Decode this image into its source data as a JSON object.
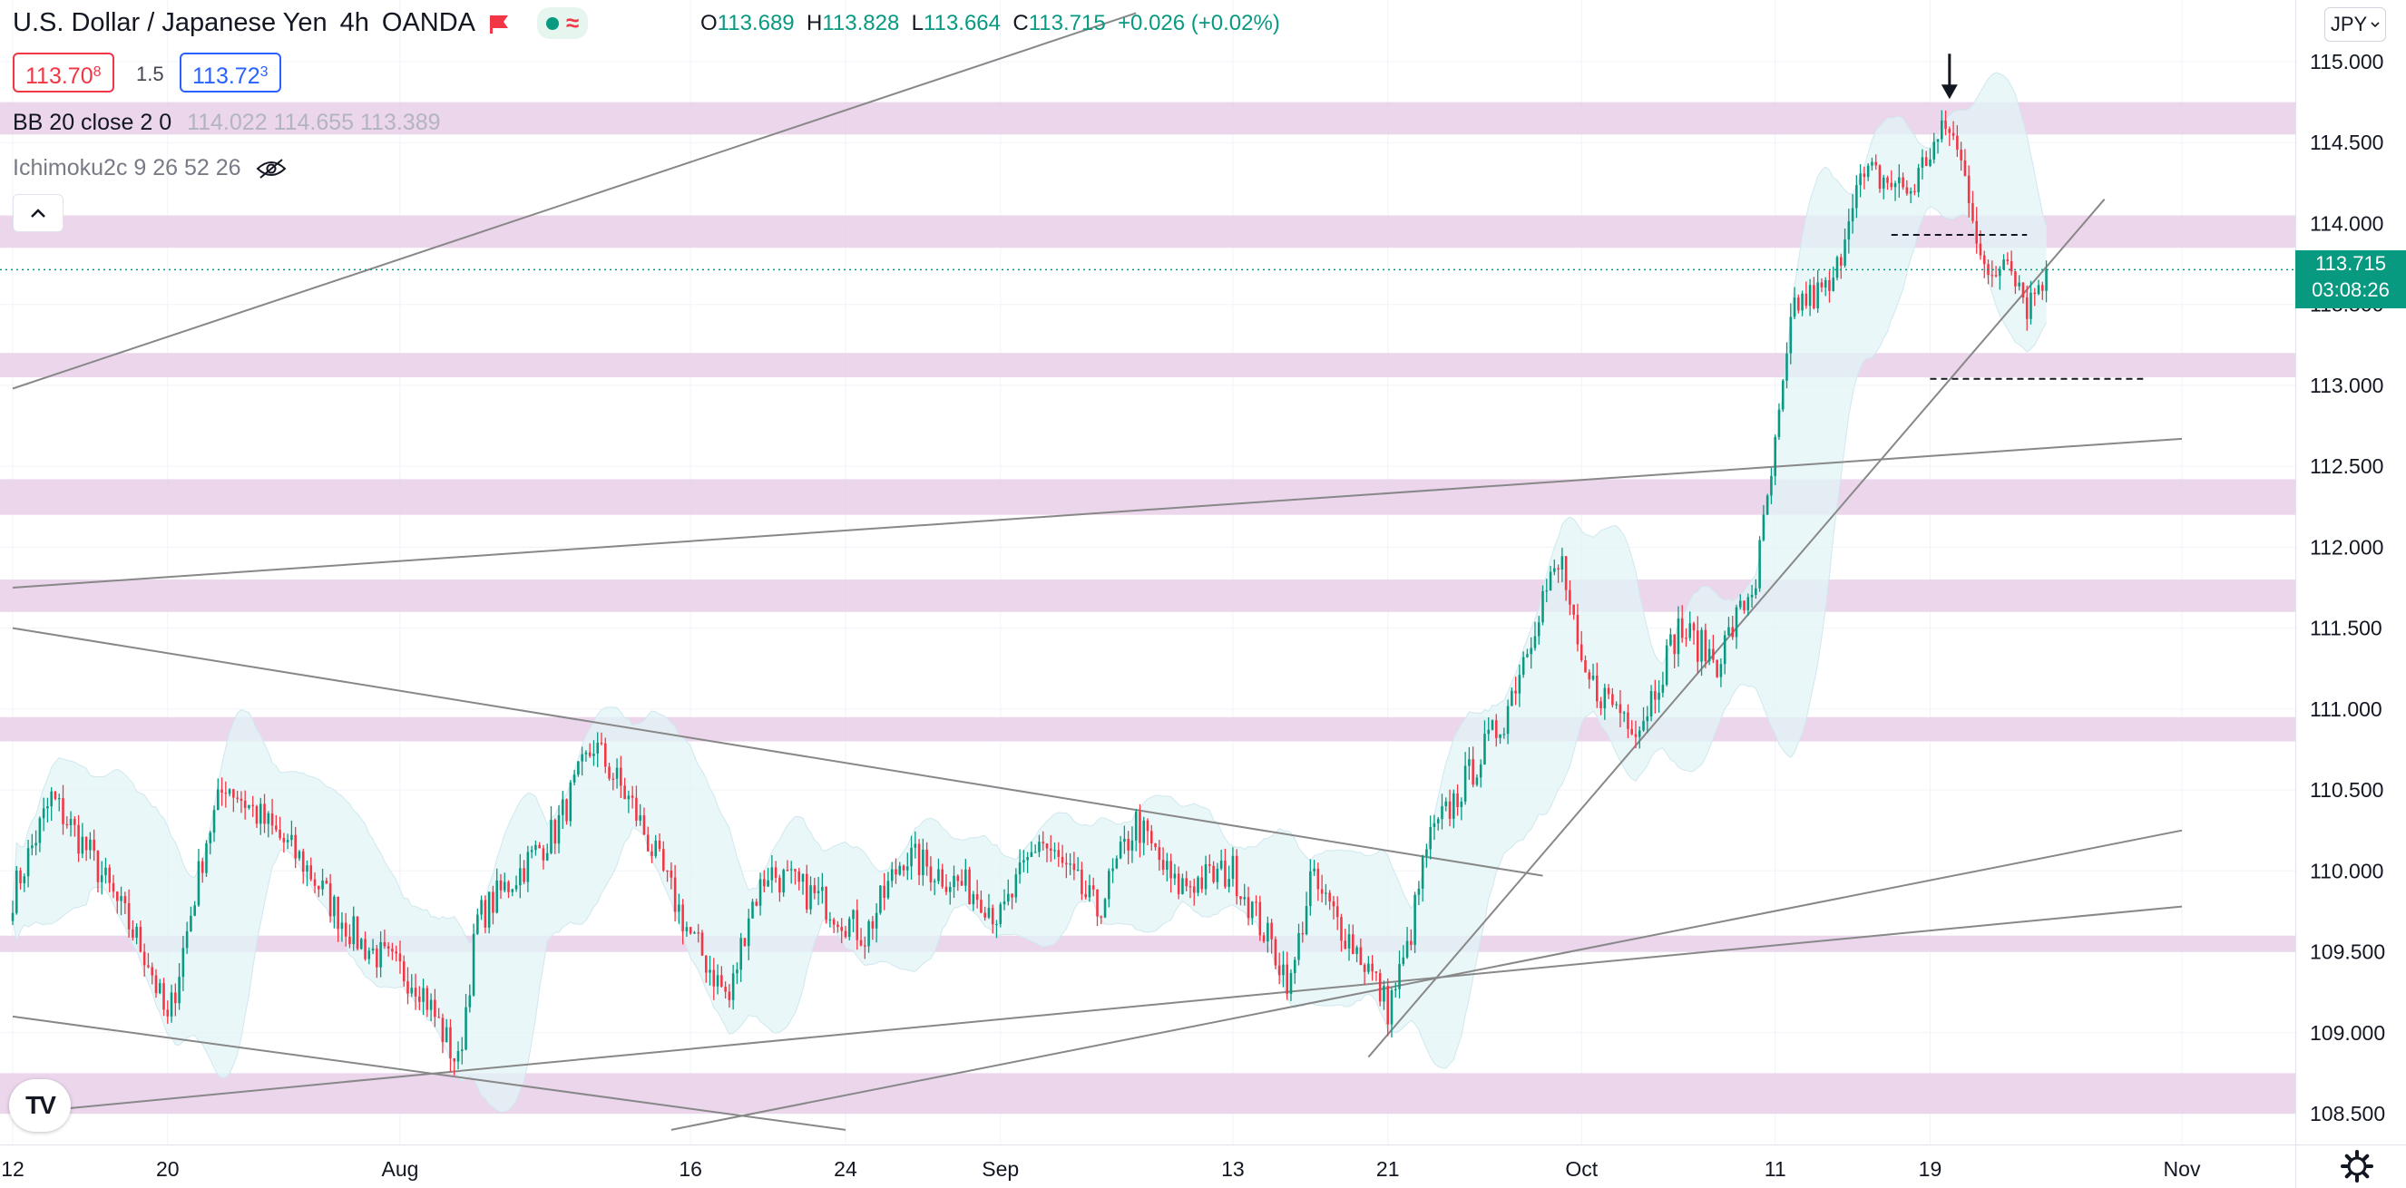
{
  "header": {
    "title": "U.S. Dollar / Japanese Yen",
    "interval": "4h",
    "broker": "OANDA",
    "flag_icon": "red-flag-icon",
    "status_icons": [
      "market-open-dot-icon",
      "data-wave-icon"
    ]
  },
  "ohlc": {
    "o_label": "O",
    "o": "113.689",
    "h_label": "H",
    "h": "113.828",
    "l_label": "L",
    "l": "113.664",
    "c_label": "C",
    "c": "113.715",
    "change": "+0.026 (+0.02%)"
  },
  "trade": {
    "sell_main": "113.70",
    "sell_sup": "8",
    "spread": "1.5",
    "buy_main": "113.72",
    "buy_sup": "3"
  },
  "indicators": {
    "bb_label": "BB 20 close 2 0",
    "bb_values": "114.022  114.655  113.389",
    "ichimoku_label": "Ichimoku2c 9 26 52 26"
  },
  "currency_button": "JPY",
  "current_price": {
    "value": "113.715",
    "countdown": "03:08:26"
  },
  "colors": {
    "up": "#089981",
    "down": "#f23645",
    "zone": "#e8cfe9",
    "band_fill": "#e3f4f7",
    "trendline": "#888888",
    "grid": "#f0f3fa"
  },
  "chart_data": {
    "type": "candlestick",
    "symbol": "USDJPY",
    "timeframe": "4h",
    "ylim": [
      108.4,
      115.25
    ],
    "y_ticks": [
      "115.000",
      "114.500",
      "114.000",
      "113.500",
      "113.000",
      "112.500",
      "112.000",
      "111.500",
      "111.000",
      "110.500",
      "110.000",
      "109.500",
      "109.000",
      "108.500"
    ],
    "x_ticks": [
      "12",
      "20",
      "Aug",
      "16",
      "24",
      "Sep",
      "13",
      "21",
      "Oct",
      "11",
      "19",
      "Nov"
    ],
    "date_range": [
      "2021-07-12",
      "2021-11-01"
    ],
    "anchors": [
      {
        "date": "2021-07-12",
        "price": 109.85
      },
      {
        "date": "2021-07-14",
        "price": 110.45
      },
      {
        "date": "2021-07-16",
        "price": 110.1
      },
      {
        "date": "2021-07-19",
        "price": 109.45
      },
      {
        "date": "2021-07-20",
        "price": 109.05
      },
      {
        "date": "2021-07-22",
        "price": 110.2
      },
      {
        "date": "2021-07-23",
        "price": 110.55
      },
      {
        "date": "2021-07-27",
        "price": 110.05
      },
      {
        "date": "2021-07-29",
        "price": 109.7
      },
      {
        "date": "2021-07-30",
        "price": 109.55
      },
      {
        "date": "2021-08-02",
        "price": 109.3
      },
      {
        "date": "2021-08-04",
        "price": 108.8
      },
      {
        "date": "2021-08-05",
        "price": 109.7
      },
      {
        "date": "2021-08-09",
        "price": 110.25
      },
      {
        "date": "2021-08-11",
        "price": 110.78
      },
      {
        "date": "2021-08-13",
        "price": 110.4
      },
      {
        "date": "2021-08-16",
        "price": 109.6
      },
      {
        "date": "2021-08-18",
        "price": 109.2
      },
      {
        "date": "2021-08-19",
        "price": 109.75
      },
      {
        "date": "2021-08-20",
        "price": 110.0
      },
      {
        "date": "2021-08-23",
        "price": 109.8
      },
      {
        "date": "2021-08-25",
        "price": 109.6
      },
      {
        "date": "2021-08-27",
        "price": 110.1
      },
      {
        "date": "2021-08-31",
        "price": 109.85
      },
      {
        "date": "2021-09-01",
        "price": 109.7
      },
      {
        "date": "2021-09-03",
        "price": 110.2
      },
      {
        "date": "2021-09-06",
        "price": 109.75
      },
      {
        "date": "2021-09-08",
        "price": 110.3
      },
      {
        "date": "2021-09-10",
        "price": 109.9
      },
      {
        "date": "2021-09-13",
        "price": 110.0
      },
      {
        "date": "2021-09-16",
        "price": 109.3
      },
      {
        "date": "2021-09-17",
        "price": 109.95
      },
      {
        "date": "2021-09-20",
        "price": 109.4
      },
      {
        "date": "2021-09-21",
        "price": 109.15
      },
      {
        "date": "2021-09-22",
        "price": 109.5
      },
      {
        "date": "2021-09-23",
        "price": 110.15
      },
      {
        "date": "2021-09-27",
        "price": 110.95
      },
      {
        "date": "2021-09-29",
        "price": 111.7
      },
      {
        "date": "2021-09-30",
        "price": 111.9
      },
      {
        "date": "2021-10-01",
        "price": 111.2
      },
      {
        "date": "2021-10-04",
        "price": 110.9
      },
      {
        "date": "2021-10-06",
        "price": 111.5
      },
      {
        "date": "2021-10-08",
        "price": 111.3
      },
      {
        "date": "2021-10-10",
        "price": 111.8
      },
      {
        "date": "2021-10-11",
        "price": 112.6
      },
      {
        "date": "2021-10-12",
        "price": 113.5
      },
      {
        "date": "2021-10-14",
        "price": 113.6
      },
      {
        "date": "2021-10-15",
        "price": 114.2
      },
      {
        "date": "2021-10-16",
        "price": 114.3
      },
      {
        "date": "2021-10-18",
        "price": 114.2
      },
      {
        "date": "2021-10-19",
        "price": 114.45
      },
      {
        "date": "2021-10-20",
        "price": 114.6
      },
      {
        "date": "2021-10-21",
        "price": 114.2
      },
      {
        "date": "2021-10-22",
        "price": 113.6
      },
      {
        "date": "2021-10-23",
        "price": 113.85
      },
      {
        "date": "2021-10-24",
        "price": 113.5
      },
      {
        "date": "2021-10-25",
        "price": 113.715
      }
    ],
    "support_resistance_zones": [
      [
        114.55,
        114.75
      ],
      [
        113.85,
        114.05
      ],
      [
        113.05,
        113.2
      ],
      [
        112.2,
        112.42
      ],
      [
        111.6,
        111.8
      ],
      [
        110.8,
        110.95
      ],
      [
        109.5,
        109.6
      ],
      [
        108.5,
        108.75
      ]
    ],
    "trendlines": [
      {
        "start": [
          "2021-07-12",
          112.98
        ],
        "end": [
          "2021-09-08",
          115.3
        ]
      },
      {
        "start": [
          "2021-07-12",
          111.75
        ],
        "end": [
          "2021-11-01",
          112.67
        ]
      },
      {
        "start": [
          "2021-07-12",
          111.5
        ],
        "end": [
          "2021-09-29",
          109.97
        ]
      },
      {
        "start": [
          "2021-07-12",
          109.1
        ],
        "end": [
          "2021-08-24",
          108.4
        ]
      },
      {
        "start": [
          "2021-07-12",
          108.5
        ],
        "end": [
          "2021-11-01",
          109.78
        ]
      },
      {
        "start": [
          "2021-08-15",
          108.4
        ],
        "end": [
          "2021-11-01",
          110.25
        ]
      },
      {
        "start": [
          "2021-09-20",
          108.85
        ],
        "end": [
          "2021-10-28",
          114.15
        ]
      }
    ],
    "dashed_levels": [
      {
        "from": "2021-10-17",
        "to": "2021-10-24",
        "price": 113.93
      },
      {
        "from": "2021-10-19",
        "to": "2021-10-30",
        "price": 113.04
      }
    ],
    "arrow_marker": {
      "date": "2021-10-20",
      "price": 114.78
    },
    "last_price": 113.715
  }
}
